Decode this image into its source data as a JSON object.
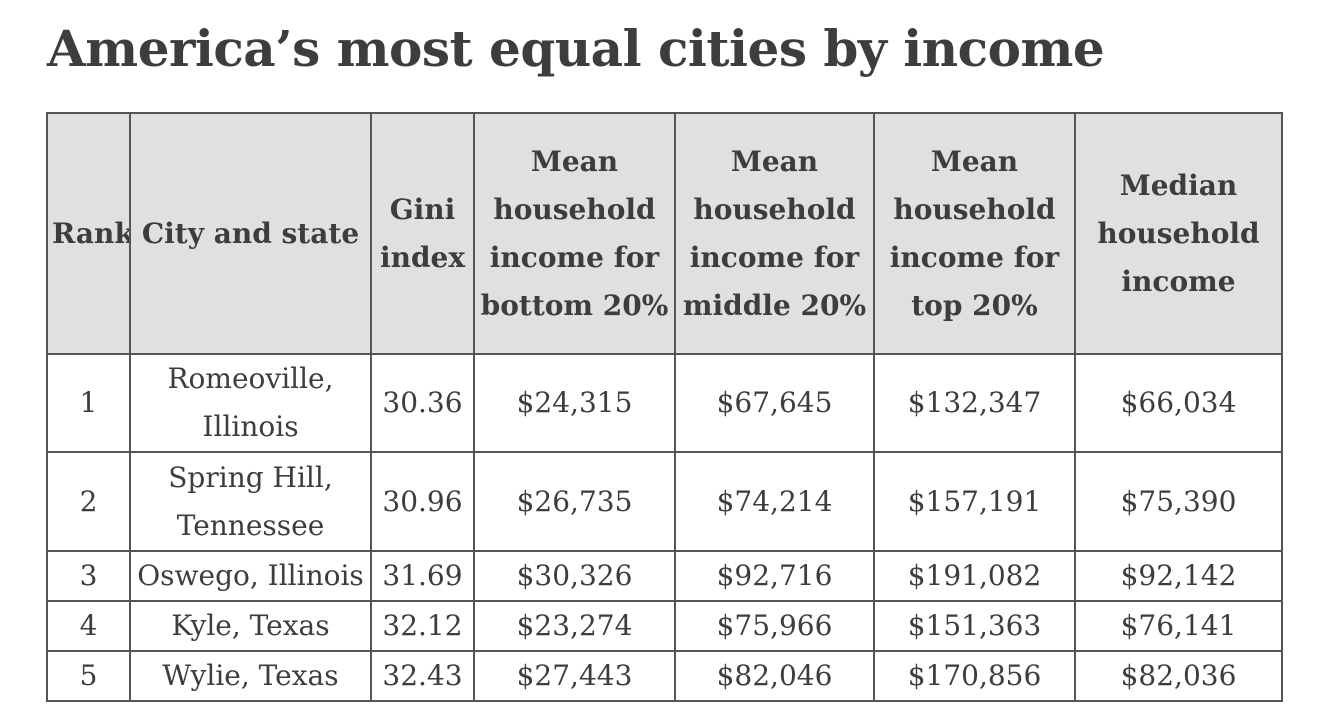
{
  "title": "America’s most equal cities by income",
  "table": {
    "header": [
      "Rank",
      "City and state",
      "Gini index",
      "Mean household income for bottom 20%",
      "Mean household income for middle 20%",
      "Mean household income for top 20%",
      "Median household income"
    ],
    "rows": [
      [
        "1",
        "Romeoville, Illinois",
        "30.36",
        "$24,315",
        "$67,645",
        "$132,347",
        "$66,034"
      ],
      [
        "2",
        "Spring Hill, Tennessee",
        "30.96",
        "$26,735",
        "$74,214",
        "$157,191",
        "$75,390"
      ],
      [
        "3",
        "Oswego, Illinois",
        "31.69",
        "$30,326",
        "$92,716",
        "$191,082",
        "$92,142"
      ],
      [
        "4",
        "Kyle, Texas",
        "32.12",
        "$23,274",
        "$75,966",
        "$151,363",
        "$76,141"
      ],
      [
        "5",
        "Wylie, Texas",
        "32.43",
        "$27,443",
        "$82,046",
        "$170,856",
        "$82,036"
      ]
    ]
  }
}
